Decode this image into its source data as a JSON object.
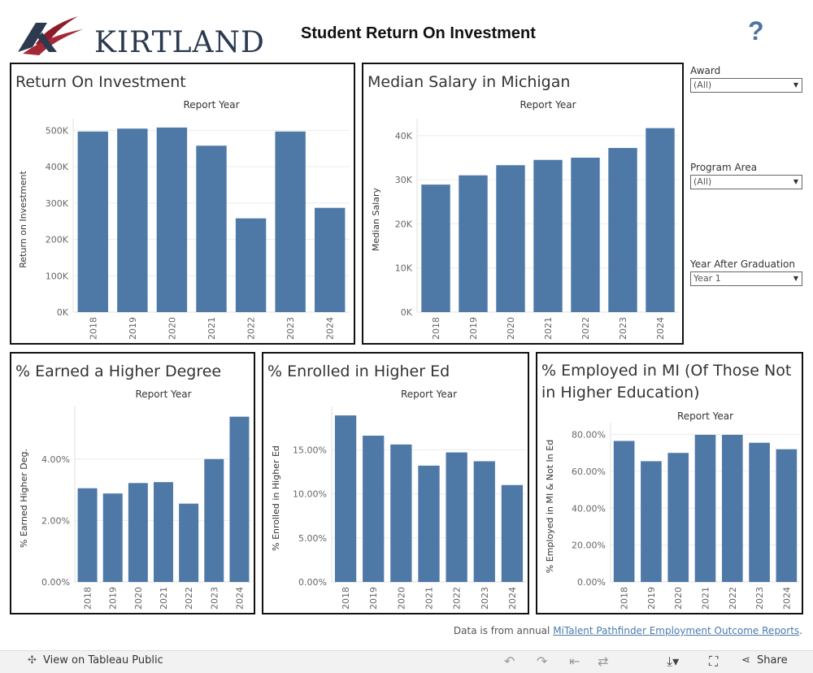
{
  "header": {
    "logo_text": "KIRTLAND",
    "title": "Student Return On Investment",
    "help": "?"
  },
  "filters": [
    {
      "label": "Award",
      "value": "(All)"
    },
    {
      "label": "Program Area",
      "value": "(All)"
    },
    {
      "label": "Year After Graduation",
      "value": "Year 1"
    }
  ],
  "footnote": {
    "prefix": "Data is from annual ",
    "link": "MiTalent Pathfinder Employment Outcome Reports",
    "suffix": "."
  },
  "toolbar": {
    "view_label": "View on Tableau Public",
    "share_label": "Share"
  },
  "colors": {
    "bar": "#4e79a7"
  },
  "chart_data": [
    {
      "type": "bar",
      "title": "Return On Investment",
      "top_label": "Report Year",
      "ylabel": "Return on Investment",
      "categories": [
        "2018",
        "2019",
        "2020",
        "2021",
        "2022",
        "2023",
        "2024"
      ],
      "values": [
        497000,
        505000,
        508000,
        458000,
        258000,
        497000,
        287000
      ],
      "ylim": [
        0,
        510000
      ],
      "yticks": [
        0,
        100000,
        200000,
        300000,
        400000,
        500000
      ],
      "ytick_labels": [
        "0K",
        "100K",
        "200K",
        "300K",
        "400K",
        "500K"
      ]
    },
    {
      "type": "bar",
      "title": "Median Salary in Michigan",
      "top_label": "Report Year",
      "ylabel": "Median Salary",
      "categories": [
        "2018",
        "2019",
        "2020",
        "2021",
        "2022",
        "2023",
        "2024"
      ],
      "values": [
        28900,
        31000,
        33300,
        34500,
        35000,
        37200,
        41700
      ],
      "ylim": [
        0,
        42000
      ],
      "yticks": [
        0,
        10000,
        20000,
        30000,
        40000
      ],
      "ytick_labels": [
        "0K",
        "10K",
        "20K",
        "30K",
        "40K"
      ]
    },
    {
      "type": "bar",
      "title": "% Earned a Higher Degree",
      "top_label": "Report Year",
      "ylabel": "% Earned Higher Deg.",
      "categories": [
        "2018",
        "2019",
        "2020",
        "2021",
        "2022",
        "2023",
        "2024"
      ],
      "values": [
        3.05,
        2.88,
        3.22,
        3.25,
        2.55,
        4.0,
        5.38
      ],
      "ylim": [
        0,
        5.45
      ],
      "yticks": [
        0,
        2,
        4
      ],
      "ytick_labels": [
        "0.00%",
        "2.00%",
        "4.00%"
      ]
    },
    {
      "type": "bar",
      "title": "% Enrolled in Higher Ed",
      "top_label": "Report Year",
      "ylabel": "% Enrolled in Higher Ed",
      "categories": [
        "2018",
        "2019",
        "2020",
        "2021",
        "2022",
        "2023",
        "2024"
      ],
      "values": [
        18.9,
        16.6,
        15.6,
        13.2,
        14.7,
        13.7,
        11.0
      ],
      "ylim": [
        0,
        19.0
      ],
      "yticks": [
        0,
        5,
        10,
        15
      ],
      "ytick_labels": [
        "0.00%",
        "5.00%",
        "10.00%",
        "15.00%"
      ]
    },
    {
      "type": "bar",
      "title": "% Employed in MI (Of Those Not in Higher Education)",
      "top_label": "Report Year",
      "ylabel": "% Employed in MI & Not In Ed",
      "categories": [
        "2018",
        "2019",
        "2020",
        "2021",
        "2022",
        "2023",
        "2024"
      ],
      "values": [
        76.5,
        65.5,
        70.0,
        79.8,
        79.8,
        75.5,
        72.0
      ],
      "ylim": [
        0,
        82.0
      ],
      "yticks": [
        0,
        20,
        40,
        60,
        80
      ],
      "ytick_labels": [
        "0.00%",
        "20.00%",
        "40.00%",
        "60.00%",
        "80.00%"
      ]
    }
  ]
}
